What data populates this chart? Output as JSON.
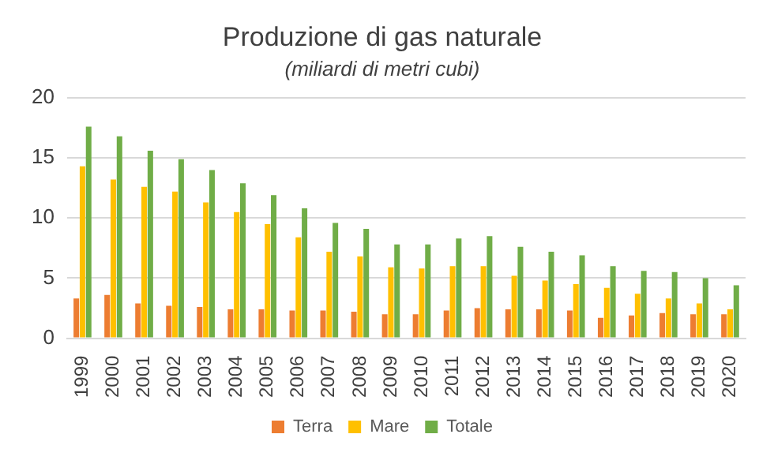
{
  "chart_data": {
    "type": "bar",
    "title": "Produzione di gas naturale",
    "subtitle": "(miliardi di metri cubi)",
    "categories": [
      "1999",
      "2000",
      "2001",
      "2002",
      "2003",
      "2004",
      "2005",
      "2006",
      "2007",
      "2008",
      "2009",
      "2010",
      "2011",
      "2012",
      "2013",
      "2014",
      "2015",
      "2016",
      "2017",
      "2018",
      "2019",
      "2020"
    ],
    "series": [
      {
        "name": "Terra",
        "color": "#ed7d31",
        "values": [
          3.3,
          3.6,
          2.9,
          2.7,
          2.6,
          2.4,
          2.4,
          2.3,
          2.3,
          2.2,
          2.0,
          2.0,
          2.3,
          2.5,
          2.4,
          2.4,
          2.3,
          1.7,
          1.9,
          2.1,
          2.0,
          2.0
        ]
      },
      {
        "name": "Mare",
        "color": "#ffc000",
        "values": [
          14.3,
          13.2,
          12.6,
          12.2,
          11.3,
          10.5,
          9.5,
          8.4,
          7.2,
          6.8,
          5.9,
          5.8,
          6.0,
          6.0,
          5.2,
          4.8,
          4.5,
          4.2,
          3.7,
          3.3,
          2.9,
          2.4
        ]
      },
      {
        "name": "Totale",
        "color": "#70ad47",
        "values": [
          17.6,
          16.8,
          15.6,
          14.9,
          14.0,
          12.9,
          11.9,
          10.8,
          9.6,
          9.1,
          7.8,
          7.8,
          8.3,
          8.5,
          7.6,
          7.2,
          6.9,
          6.0,
          5.6,
          5.5,
          5.0,
          4.4
        ]
      }
    ],
    "ylim": [
      0,
      20
    ],
    "yticks": [
      0,
      5,
      10,
      15,
      20
    ],
    "grid": "y",
    "legend": "bottom"
  }
}
